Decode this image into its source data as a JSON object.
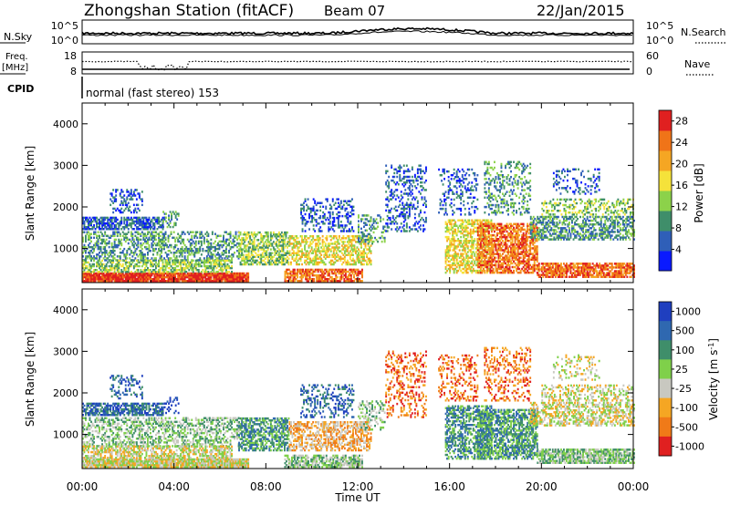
{
  "header": {
    "station": "Zhongshan Station (fitACF)",
    "beam": "Beam 07",
    "date": "22/Jan/2015"
  },
  "summary_panels": {
    "nsky_label": "N.Sky",
    "nsearch_label": "N.Search",
    "noise_ticks": [
      "10^5",
      "10^0"
    ],
    "freq_label_line1": "Freq.",
    "freq_label_line2": "[MHz]",
    "freq_ticks": [
      "18",
      "8"
    ],
    "nave_label": "Nave",
    "nave_ticks": [
      "60",
      "0"
    ],
    "cpid_label": "CPID",
    "cpid_text": "normal (fast stereo) 153"
  },
  "chart_data": [
    {
      "type": "heatmap",
      "title": "",
      "xlabel": "Time UT",
      "ylabel": "Slant Range [km]",
      "x_ticks": [
        "00:00",
        "04:00",
        "08:00",
        "12:00",
        "16:00",
        "20:00",
        "00:00"
      ],
      "xlim_hours": [
        0,
        24
      ],
      "y_ticks": [
        1000,
        2000,
        3000,
        4000
      ],
      "ylim": [
        180,
        4500
      ],
      "colorbar": {
        "label": "Power [dB]",
        "ticks": [
          4,
          8,
          12,
          16,
          20,
          24,
          28
        ],
        "range": [
          0,
          30
        ],
        "colors": [
          "#0a1aff",
          "#2f5fb8",
          "#3f8e6a",
          "#8cd24a",
          "#f5e23a",
          "#f5a623",
          "#f07418",
          "#e02020"
        ]
      }
    },
    {
      "type": "heatmap",
      "title": "",
      "xlabel": "Time UT",
      "ylabel": "Slant Range [km]",
      "x_ticks": [
        "00:00",
        "04:00",
        "08:00",
        "12:00",
        "16:00",
        "20:00",
        "00:00"
      ],
      "xlim_hours": [
        0,
        24
      ],
      "y_ticks": [
        1000,
        2000,
        3000,
        4000
      ],
      "ylim": [
        180,
        4500
      ],
      "colorbar": {
        "label": "Velocity [m s",
        "label_sup": "-1",
        "label_close": "]",
        "ticks": [
          "1000",
          "500",
          "100",
          "25",
          "-25",
          "-100",
          "-500",
          "-1000"
        ],
        "colors": [
          "#1f3fbf",
          "#2f68b0",
          "#3f8e6a",
          "#7fd04a",
          "#c8c8c0",
          "#f5a623",
          "#f07a18",
          "#e02020"
        ]
      }
    }
  ]
}
